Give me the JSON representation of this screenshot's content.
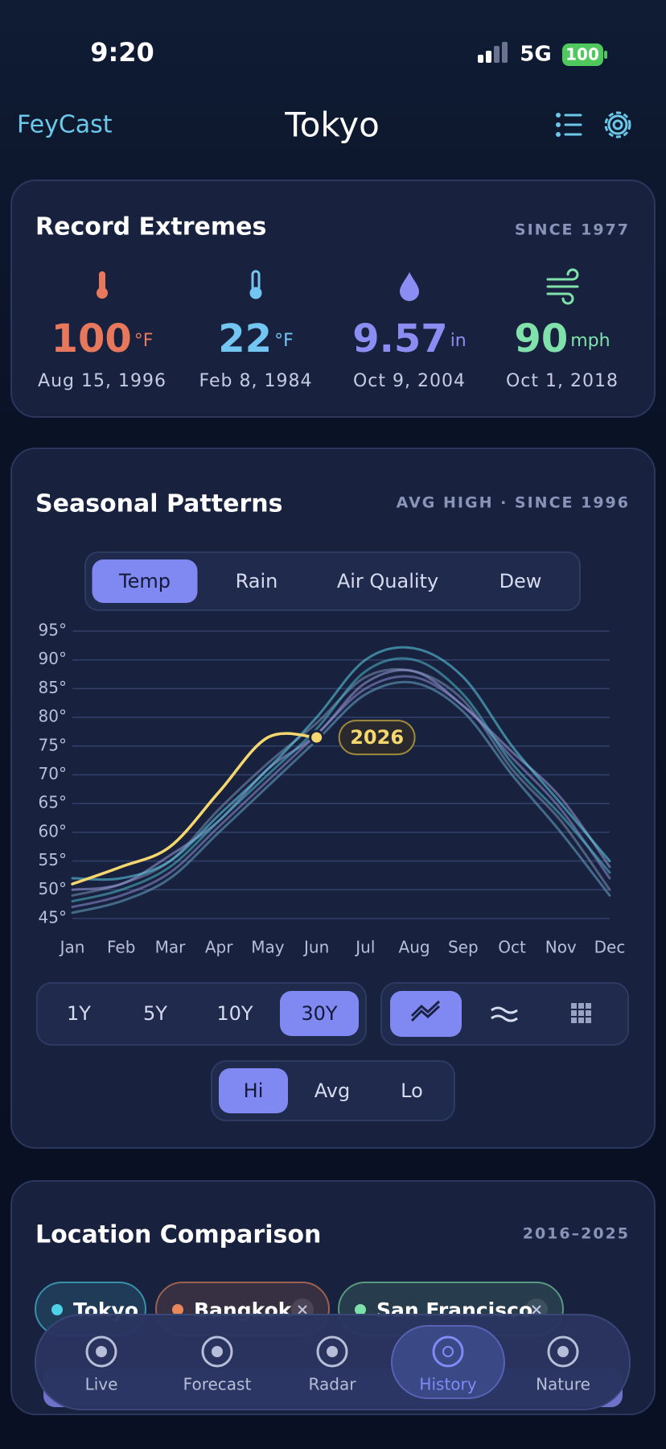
{
  "status_bar": {
    "time": "9:20",
    "network": "5G",
    "battery": 100
  },
  "header": {
    "brand": "FeyCast",
    "city": "Tokyo"
  },
  "record_extremes": {
    "title": "Record Extremes",
    "since": "SINCE 1977",
    "items": [
      {
        "value": 100,
        "unit": "°F",
        "date": "Aug 15, 1996",
        "color": "#e8785c"
      },
      {
        "value": 22,
        "unit": "°F",
        "date": "Feb 8, 1984",
        "color": "#74c6f2"
      },
      {
        "value": 9.57,
        "unit": "in",
        "date": "Oct 9, 2004",
        "color": "#8c8df2"
      },
      {
        "value": 90,
        "unit": "mph",
        "date": "Oct 1, 2018",
        "color": "#80e2aa"
      }
    ]
  },
  "seasonal_patterns": {
    "title": "Seasonal Patterns",
    "subtitle": "AVG HIGH · SINCE 1996",
    "metric_tabs": [
      "Temp",
      "Rain",
      "Air Quality",
      "Dew"
    ],
    "active_metric": 0,
    "range_buttons": [
      "1Y",
      "5Y",
      "10Y",
      "30Y"
    ],
    "active_range": 3,
    "stat_buttons": [
      "Hi",
      "Avg",
      "Lo"
    ],
    "active_stat": 0
  },
  "chart_data": {
    "type": "line",
    "categories": [
      "Jan",
      "Feb",
      "Mar",
      "Apr",
      "May",
      "Jun",
      "Jul",
      "Aug",
      "Sep",
      "Oct",
      "Nov",
      "Dec"
    ],
    "ylim": [
      45,
      95
    ],
    "yticks": [
      {
        "value": 95,
        "label": "95°"
      },
      {
        "value": 90,
        "label": "90°"
      },
      {
        "value": 85,
        "label": "85°"
      },
      {
        "value": 80,
        "label": "80°"
      },
      {
        "value": 75,
        "label": "75°"
      },
      {
        "value": 70,
        "label": "70°"
      },
      {
        "value": 65,
        "label": "65°"
      },
      {
        "value": 60,
        "label": "60°"
      },
      {
        "value": 55,
        "label": "55°"
      },
      {
        "value": 50,
        "label": "50°"
      },
      {
        "value": 45,
        "label": "45°"
      }
    ],
    "grid": true,
    "series": [
      {
        "color": "#7a8fb3",
        "values": [
          49,
          51,
          55,
          64,
          72,
          79,
          87,
          88,
          83,
          71,
          62,
          50
        ]
      },
      {
        "color": "#9a9ad8",
        "values": [
          50,
          51,
          56,
          62,
          71,
          77,
          86,
          88,
          82,
          74,
          66,
          54
        ]
      },
      {
        "color": "#8e8ccf",
        "values": [
          47,
          49,
          53,
          61,
          69,
          77,
          85,
          87,
          82,
          73,
          64,
          52
        ]
      },
      {
        "color": "#6aa6c8",
        "values": [
          46,
          48,
          52,
          60,
          68,
          76,
          84,
          86,
          81,
          70,
          60,
          49
        ]
      },
      {
        "color": "#4fb8c9",
        "values": [
          48,
          50,
          54,
          62,
          70,
          78,
          88,
          90,
          84,
          72,
          63,
          53
        ]
      },
      {
        "color": "#5fd3e8",
        "values": [
          52,
          52,
          55,
          63,
          71,
          80,
          90,
          92,
          87,
          75,
          65,
          55
        ]
      },
      {
        "name": "2026",
        "color": "#f5d76e",
        "values": [
          51,
          54,
          57.5,
          67,
          76.5,
          76.5,
          null,
          null,
          null,
          null,
          null,
          null
        ]
      }
    ]
  },
  "location_comparison": {
    "title": "Location Comparison",
    "period": "2016–2025",
    "chips": [
      {
        "name": "Tokyo",
        "color": "#4fd1e8"
      },
      {
        "name": "Bangkok",
        "color": "#e8875a"
      },
      {
        "name": "San Francisco",
        "color": "#7ee0a8"
      }
    ]
  },
  "tab_bar": {
    "items": [
      "Live",
      "Forecast",
      "Radar",
      "History",
      "Nature"
    ],
    "active": 3
  }
}
